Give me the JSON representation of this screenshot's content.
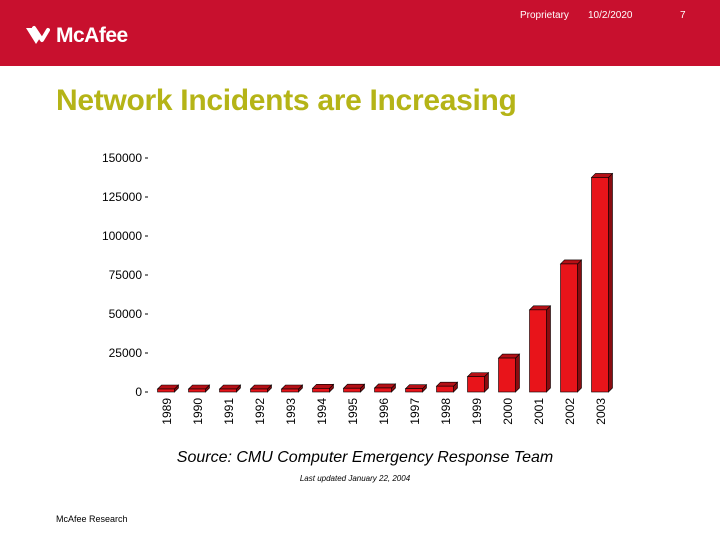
{
  "header": {
    "logo_text": "McAfee",
    "proprietary": "Proprietary",
    "date": "10/2/2020",
    "page_number": "7",
    "background_color": "#c8102e"
  },
  "slide": {
    "title": "Network Incidents are Increasing",
    "title_color": "#b5b417",
    "source": "Source:  CMU Computer Emergency Response Team",
    "last_updated": "Last updated January 22, 2004",
    "footer": "McAfee Research"
  },
  "chart_data": {
    "type": "bar",
    "categories": [
      "1989",
      "1990",
      "1991",
      "1992",
      "1993",
      "1994",
      "1995",
      "1996",
      "1997",
      "1998",
      "1999",
      "2000",
      "2001",
      "2002",
      "2003"
    ],
    "values": [
      132,
      252,
      406,
      773,
      1334,
      2340,
      2412,
      2573,
      2134,
      3734,
      9859,
      21756,
      52658,
      82094,
      137529
    ],
    "y_ticks": [
      "0",
      "25000",
      "50000",
      "75000",
      "100000",
      "125000",
      "150000"
    ],
    "ylim": [
      0,
      150000
    ],
    "bar_color": "#e8141a",
    "grid": false,
    "legend": "none"
  }
}
